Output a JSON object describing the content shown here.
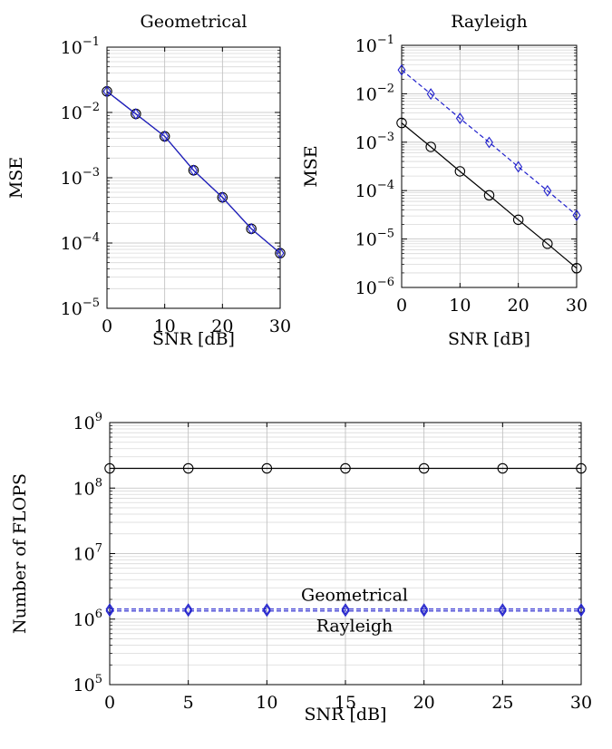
{
  "chart_data": [
    {
      "type": "line",
      "title": "Geometrical",
      "xlabel": "SNR [dB]",
      "ylabel": "MSE",
      "yscale": "log",
      "xlim": [
        0,
        30
      ],
      "ylim": [
        1e-05,
        0.1
      ],
      "xticks": [
        0,
        10,
        20,
        30
      ],
      "yticks": [
        -5,
        -4,
        -3,
        -2,
        -1
      ],
      "grid": true,
      "x": [
        0,
        5,
        10,
        15,
        20,
        25,
        30
      ],
      "series": [
        {
          "color": "#000000",
          "dash": false,
          "marker": "circle",
          "values": [
            0.021,
            0.0095,
            0.0043,
            0.0013,
            0.0005,
            0.000165,
            7e-05
          ]
        },
        {
          "color": "#1f1fcc",
          "dash": false,
          "marker": "diamond",
          "values": [
            0.021,
            0.0095,
            0.0043,
            0.0013,
            0.0005,
            0.000165,
            7e-05
          ]
        }
      ]
    },
    {
      "type": "line",
      "title": "Rayleigh",
      "xlabel": "SNR [dB]",
      "ylabel": "MSE",
      "yscale": "log",
      "xlim": [
        0,
        30
      ],
      "ylim": [
        1e-06,
        0.1
      ],
      "xticks": [
        0,
        10,
        20,
        30
      ],
      "yticks": [
        -6,
        -5,
        -4,
        -3,
        -2,
        -1
      ],
      "grid": true,
      "x": [
        0,
        5,
        10,
        15,
        20,
        25,
        30
      ],
      "series": [
        {
          "color": "#000000",
          "dash": false,
          "marker": "circle",
          "values": [
            0.0025,
            0.0008,
            0.00025,
            8e-05,
            2.5e-05,
            8e-06,
            2.5e-06
          ]
        },
        {
          "color": "#1f1fcc",
          "dash": true,
          "marker": "diamond",
          "values": [
            0.031,
            0.0099,
            0.0031,
            0.00099,
            0.00031,
            9.9e-05,
            3.1e-05
          ]
        }
      ]
    },
    {
      "type": "line",
      "title": "",
      "xlabel": "SNR [dB]",
      "ylabel": "Number of FLOPS",
      "yscale": "log",
      "xlim": [
        0,
        30
      ],
      "ylim": [
        100000.0,
        1000000000.0
      ],
      "xticks": [
        0,
        5,
        10,
        15,
        20,
        25,
        30
      ],
      "yticks": [
        5,
        6,
        7,
        8,
        9
      ],
      "grid": true,
      "x": [
        0,
        5,
        10,
        15,
        20,
        25,
        30
      ],
      "series": [
        {
          "color": "#000000",
          "dash": false,
          "marker": "circle",
          "values": [
            200000000,
            200000000,
            200000000,
            200000000,
            200000000,
            200000000,
            200000000
          ]
        },
        {
          "color": "#1f1fcc",
          "dash": true,
          "marker": "diamond",
          "values": [
            1420000,
            1420000,
            1420000,
            1420000,
            1420000,
            1420000,
            1420000
          ]
        },
        {
          "color": "#1f1fcc",
          "dash": true,
          "marker": "diamond",
          "values": [
            1330000,
            1330000,
            1330000,
            1330000,
            1330000,
            1330000,
            1330000
          ]
        }
      ],
      "annotations": [
        {
          "text": "Geometrical",
          "x": 15,
          "y": 2300000
        },
        {
          "text": "Rayleigh",
          "x": 15,
          "y": 780000
        }
      ]
    }
  ]
}
